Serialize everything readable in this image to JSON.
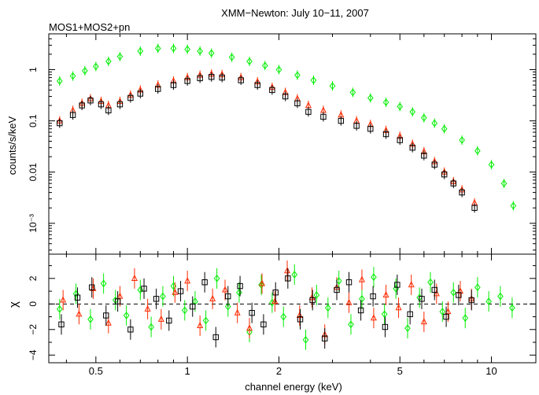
{
  "chart_data": [
    {
      "type": "scatter",
      "panel": "spectrum",
      "title": "XMM−Newton: July 10−11, 2007",
      "subtitle": "MOS1+MOS2+pn",
      "xlabel": "channel energy (keV)",
      "ylabel": "counts/s/keV",
      "xscale": "log",
      "yscale": "log",
      "xlim": [
        0.35,
        14
      ],
      "ylim": [
        0.00025,
        5
      ],
      "x_ticks": [
        0.5,
        1,
        2,
        5,
        10
      ],
      "x_tick_labels": [
        "0.5",
        "1",
        "2",
        "5",
        "10"
      ],
      "y_ticks": [
        1,
        0.1,
        0.01,
        0.001
      ],
      "y_tick_labels": [
        "1",
        "0.1",
        "0.01",
        "10⁻³"
      ],
      "grid": false,
      "series": [
        {
          "color": "#00ee00",
          "marker": "diamond",
          "x": [
            0.38,
            0.42,
            0.46,
            0.5,
            0.55,
            0.6,
            0.7,
            0.8,
            0.9,
            1.0,
            1.1,
            1.2,
            1.4,
            1.6,
            1.8,
            2.0,
            2.3,
            2.6,
            3.0,
            3.5,
            4.0,
            4.5,
            5.0,
            5.5,
            6.0,
            6.5,
            7.0,
            8.0,
            9.0,
            10.0,
            11.0,
            11.8
          ],
          "y": [
            0.6,
            0.75,
            0.95,
            1.15,
            1.45,
            1.8,
            2.3,
            2.6,
            2.6,
            2.5,
            2.3,
            2.1,
            1.75,
            1.45,
            1.2,
            1.0,
            0.78,
            0.62,
            0.48,
            0.36,
            0.28,
            0.23,
            0.19,
            0.15,
            0.115,
            0.09,
            0.07,
            0.042,
            0.026,
            0.014,
            0.006,
            0.0022
          ]
        },
        {
          "color": "#ff2a00",
          "marker": "triangle",
          "x": [
            0.38,
            0.42,
            0.45,
            0.48,
            0.52,
            0.55,
            0.6,
            0.65,
            0.7,
            0.8,
            0.9,
            1.0,
            1.1,
            1.2,
            1.3,
            1.5,
            1.7,
            1.9,
            2.1,
            2.3,
            2.5,
            2.8,
            3.2,
            3.6,
            4.0,
            4.5,
            5.0,
            5.5,
            6.0,
            6.5,
            7.0,
            7.5,
            8.0,
            8.8
          ],
          "y": [
            0.1,
            0.16,
            0.22,
            0.27,
            0.24,
            0.2,
            0.24,
            0.32,
            0.4,
            0.5,
            0.6,
            0.7,
            0.78,
            0.82,
            0.8,
            0.7,
            0.58,
            0.45,
            0.36,
            0.27,
            0.2,
            0.16,
            0.13,
            0.1,
            0.085,
            0.065,
            0.05,
            0.035,
            0.025,
            0.016,
            0.01,
            0.0065,
            0.0045,
            0.0025
          ]
        },
        {
          "color": "#000000",
          "marker": "square",
          "x": [
            0.38,
            0.42,
            0.45,
            0.48,
            0.52,
            0.55,
            0.6,
            0.65,
            0.7,
            0.8,
            0.9,
            1.0,
            1.1,
            1.2,
            1.3,
            1.5,
            1.7,
            1.9,
            2.1,
            2.3,
            2.5,
            2.8,
            3.2,
            3.6,
            4.0,
            4.5,
            5.0,
            5.5,
            6.0,
            6.5,
            7.0,
            7.5,
            8.0,
            8.8
          ],
          "y": [
            0.09,
            0.13,
            0.2,
            0.25,
            0.21,
            0.16,
            0.21,
            0.28,
            0.34,
            0.42,
            0.5,
            0.6,
            0.68,
            0.72,
            0.7,
            0.62,
            0.5,
            0.4,
            0.3,
            0.22,
            0.15,
            0.12,
            0.1,
            0.08,
            0.07,
            0.055,
            0.042,
            0.03,
            0.021,
            0.014,
            0.009,
            0.006,
            0.004,
            0.002
          ]
        }
      ]
    },
    {
      "type": "scatter",
      "panel": "residuals",
      "xlabel": "channel energy (keV)",
      "ylabel": "χ",
      "xscale": "log",
      "xlim": [
        0.35,
        14
      ],
      "ylim": [
        -4.6,
        3.9
      ],
      "y_ticks": [
        -4,
        -2,
        0,
        2
      ],
      "y_tick_labels": [
        "−4",
        "−2",
        "0",
        "2"
      ],
      "reference_line": 0,
      "series": [
        {
          "color": "#00ee00",
          "marker": "diamond",
          "x": [
            0.38,
            0.43,
            0.48,
            0.53,
            0.58,
            0.63,
            0.7,
            0.76,
            0.83,
            0.9,
            0.98,
            1.06,
            1.15,
            1.25,
            1.36,
            1.48,
            1.6,
            1.75,
            1.9,
            2.07,
            2.25,
            2.45,
            2.66,
            2.9,
            3.15,
            3.45,
            3.75,
            4.1,
            4.45,
            4.85,
            5.3,
            5.8,
            6.3,
            6.9,
            7.5,
            8.2,
            9.0,
            9.8,
            10.7,
            11.7
          ],
          "y": [
            -0.4,
            0.8,
            -1.2,
            1.6,
            0.3,
            -0.9,
            1.1,
            -1.8,
            0.6,
            1.4,
            -0.5,
            0.2,
            -1.3,
            2.0,
            -0.2,
            0.9,
            -2.2,
            1.5,
            0.1,
            -1.0,
            2.3,
            -2.8,
            0.7,
            -0.3,
            1.8,
            -1.6,
            0.4,
            2.1,
            -0.8,
            1.2,
            -1.9,
            0.5,
            1.7,
            -0.6,
            0.9,
            -1.1,
            1.3,
            0.2,
            0.6,
            -0.3
          ]
        },
        {
          "color": "#ff2a00",
          "marker": "triangle",
          "x": [
            0.39,
            0.44,
            0.49,
            0.55,
            0.6,
            0.67,
            0.74,
            0.82,
            0.91,
            1.0,
            1.1,
            1.21,
            1.33,
            1.46,
            1.6,
            1.76,
            1.94,
            2.13,
            2.34,
            2.57,
            2.83,
            3.1,
            3.4,
            3.75,
            4.1,
            4.5,
            4.95,
            5.45,
            6.0,
            6.6,
            7.2,
            7.9,
            8.6
          ],
          "y": [
            0.3,
            -0.8,
            1.2,
            -1.5,
            0.6,
            2.0,
            -0.4,
            -1.2,
            0.9,
            1.8,
            -1.7,
            0.4,
            1.1,
            -0.7,
            -1.9,
            1.6,
            0.2,
            2.6,
            -0.9,
            0.5,
            -2.4,
            1.3,
            0.1,
            1.9,
            -1.1,
            0.7,
            -0.3,
            1.5,
            -1.4,
            0.8,
            -0.6,
            1.0,
            0.4
          ]
        },
        {
          "color": "#000000",
          "marker": "square",
          "x": [
            0.385,
            0.435,
            0.485,
            0.54,
            0.59,
            0.65,
            0.72,
            0.79,
            0.87,
            0.95,
            1.04,
            1.14,
            1.24,
            1.36,
            1.49,
            1.63,
            1.78,
            1.95,
            2.14,
            2.35,
            2.58,
            2.83,
            3.1,
            3.4,
            3.72,
            4.08,
            4.47,
            4.9,
            5.4,
            5.9,
            6.5,
            7.1,
            7.8,
            8.6
          ],
          "y": [
            -1.6,
            0.5,
            1.3,
            -0.9,
            0.2,
            -2.0,
            1.2,
            0.4,
            -1.3,
            1.0,
            -0.2,
            1.7,
            -2.6,
            0.6,
            1.4,
            -0.7,
            -1.6,
            0.9,
            2.0,
            -1.2,
            0.3,
            -2.7,
            1.1,
            1.7,
            -0.5,
            0.6,
            -1.8,
            1.5,
            -0.8,
            0.4,
            1.1,
            -1.0,
            0.7,
            0.3
          ]
        }
      ]
    }
  ]
}
